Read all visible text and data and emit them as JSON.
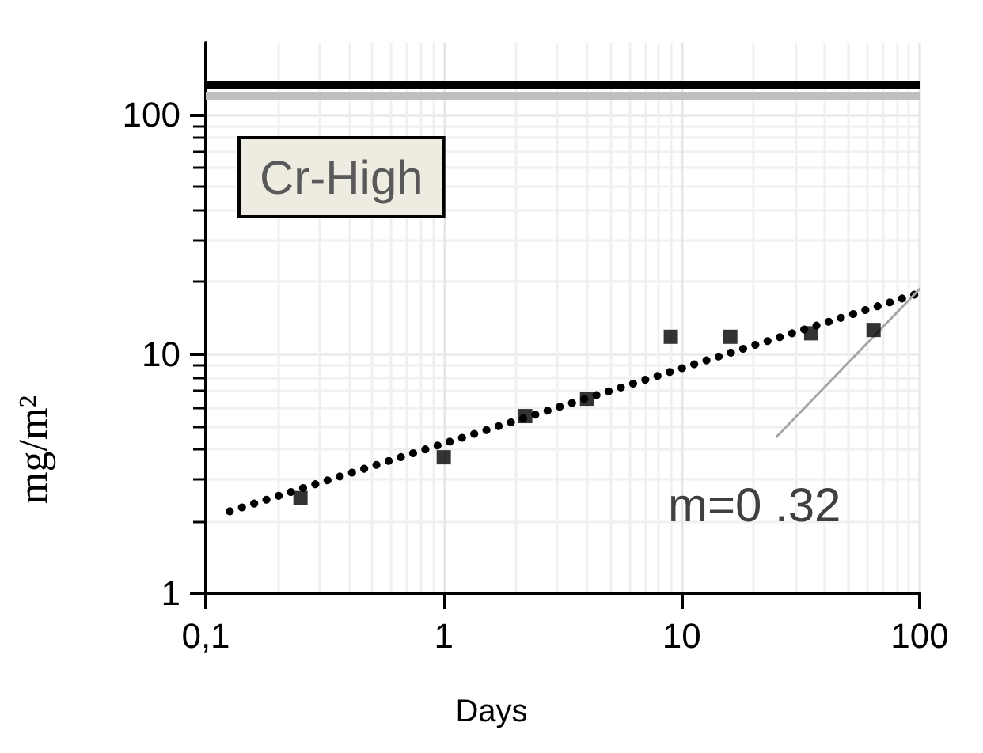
{
  "chart_data": {
    "type": "scatter",
    "xlabel": "Days",
    "ylabel": "mg/m²",
    "annotations": [
      "Cr-High",
      "m=0 .32"
    ],
    "log": "xy",
    "grid": true,
    "xlim": [
      0.1,
      100
    ],
    "xticks": [
      {
        "value": 0.1,
        "label": "0,1"
      },
      1,
      10,
      100
    ],
    "ylim": [
      1,
      200
    ],
    "yticks": [
      1,
      10,
      100
    ],
    "ref_lines": [
      {
        "axis": "y",
        "value": 135,
        "color": "#000000"
      },
      {
        "axis": "y",
        "value": 120,
        "color": "#bfbfbf"
      }
    ],
    "series": [
      {
        "marker": "square",
        "color": "#000000",
        "x": [
          0.25,
          1,
          2.2,
          4,
          9,
          16,
          35,
          64
        ],
        "values": [
          2.5,
          3.7,
          5.5,
          6.5,
          11.8,
          11.8,
          12.2,
          12.6
        ]
      },
      {
        "type": "line",
        "marker": "none",
        "line_style": "dotted",
        "color": "#000000",
        "x": [
          0.126,
          100
        ],
        "values": [
          2.2,
          18
        ]
      },
      {
        "type": "line",
        "marker": "none",
        "line_style": "solid",
        "color": "#a6a6a6",
        "x": [
          25,
          100
        ],
        "values": [
          4.5,
          18.7
        ]
      }
    ]
  }
}
